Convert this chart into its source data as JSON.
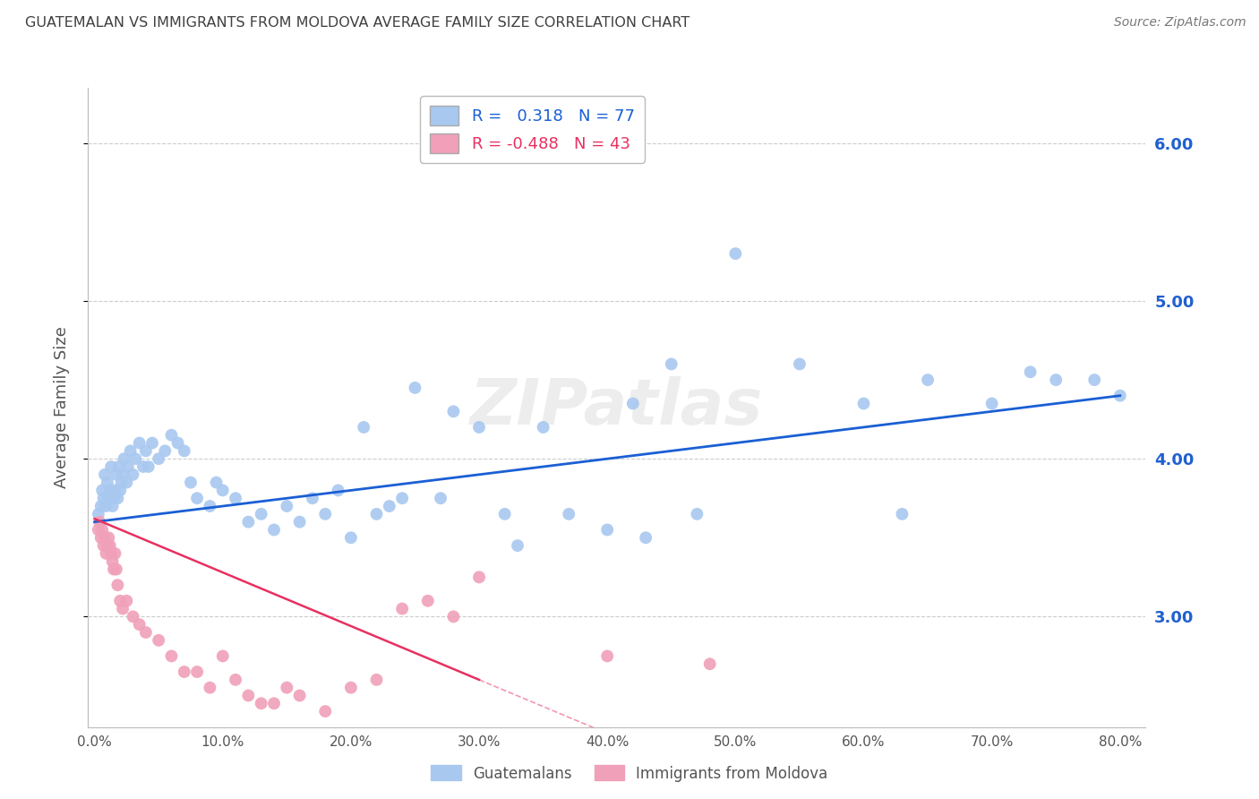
{
  "title": "GUATEMALAN VS IMMIGRANTS FROM MOLDOVA AVERAGE FAMILY SIZE CORRELATION CHART",
  "source": "Source: ZipAtlas.com",
  "ylabel": "Average Family Size",
  "xlabel_ticks": [
    "0.0%",
    "10.0%",
    "20.0%",
    "30.0%",
    "40.0%",
    "50.0%",
    "60.0%",
    "70.0%",
    "80.0%"
  ],
  "xlabel_vals": [
    0,
    10,
    20,
    30,
    40,
    50,
    60,
    70,
    80
  ],
  "yticks": [
    3.0,
    4.0,
    5.0,
    6.0
  ],
  "ylim": [
    2.3,
    6.35
  ],
  "xlim": [
    -0.5,
    82
  ],
  "blue_R": 0.318,
  "blue_N": 77,
  "pink_R": -0.488,
  "pink_N": 43,
  "blue_color": "#a8c8f0",
  "pink_color": "#f0a0b8",
  "blue_line_color": "#1a5fd4",
  "pink_line_color": "#e83060",
  "legend_blue_label": "Guatemalans",
  "legend_pink_label": "Immigrants from Moldova",
  "watermark": "ZIPatlas",
  "background_color": "#ffffff",
  "grid_color": "#cccccc",
  "title_color": "#404040",
  "axis_label_color": "#555555",
  "right_axis_color": "#2060d0",
  "blue_x": [
    0.3,
    0.5,
    0.6,
    0.7,
    0.8,
    0.9,
    1.0,
    1.1,
    1.2,
    1.3,
    1.4,
    1.5,
    1.6,
    1.7,
    1.8,
    1.9,
    2.0,
    2.1,
    2.2,
    2.3,
    2.5,
    2.6,
    2.8,
    3.0,
    3.2,
    3.5,
    3.8,
    4.0,
    4.2,
    4.5,
    5.0,
    5.5,
    6.0,
    6.5,
    7.0,
    7.5,
    8.0,
    9.0,
    9.5,
    10.0,
    11.0,
    12.0,
    13.0,
    14.0,
    15.0,
    16.0,
    17.0,
    18.0,
    19.0,
    20.0,
    21.0,
    22.0,
    23.0,
    24.0,
    25.0,
    27.0,
    28.0,
    30.0,
    32.0,
    33.0,
    35.0,
    37.0,
    40.0,
    42.0,
    43.0,
    45.0,
    47.0,
    50.0,
    55.0,
    60.0,
    63.0,
    65.0,
    70.0,
    73.0,
    75.0,
    78.0,
    80.0
  ],
  "blue_y": [
    3.65,
    3.7,
    3.8,
    3.75,
    3.9,
    3.7,
    3.85,
    3.75,
    3.8,
    3.95,
    3.7,
    3.75,
    3.8,
    3.9,
    3.75,
    3.95,
    3.8,
    3.85,
    3.9,
    4.0,
    3.85,
    3.95,
    4.05,
    3.9,
    4.0,
    4.1,
    3.95,
    4.05,
    3.95,
    4.1,
    4.0,
    4.05,
    4.15,
    4.1,
    4.05,
    3.85,
    3.75,
    3.7,
    3.85,
    3.8,
    3.75,
    3.6,
    3.65,
    3.55,
    3.7,
    3.6,
    3.75,
    3.65,
    3.8,
    3.5,
    4.2,
    3.65,
    3.7,
    3.75,
    4.45,
    3.75,
    4.3,
    4.2,
    3.65,
    3.45,
    4.2,
    3.65,
    3.55,
    4.35,
    3.5,
    4.6,
    3.65,
    5.3,
    4.6,
    4.35,
    3.65,
    4.5,
    4.35,
    4.55,
    4.5,
    4.5,
    4.4
  ],
  "pink_x": [
    0.3,
    0.4,
    0.5,
    0.6,
    0.7,
    0.8,
    0.9,
    1.0,
    1.1,
    1.2,
    1.3,
    1.4,
    1.5,
    1.6,
    1.7,
    1.8,
    2.0,
    2.2,
    2.5,
    3.0,
    3.5,
    4.0,
    5.0,
    6.0,
    7.0,
    8.0,
    9.0,
    10.0,
    11.0,
    12.0,
    13.0,
    14.0,
    15.0,
    16.0,
    18.0,
    20.0,
    22.0,
    24.0,
    26.0,
    28.0,
    30.0,
    40.0,
    48.0
  ],
  "pink_y": [
    3.55,
    3.6,
    3.5,
    3.55,
    3.45,
    3.5,
    3.4,
    3.45,
    3.5,
    3.45,
    3.4,
    3.35,
    3.3,
    3.4,
    3.3,
    3.2,
    3.1,
    3.05,
    3.1,
    3.0,
    2.95,
    2.9,
    2.85,
    2.75,
    2.65,
    2.65,
    2.55,
    2.75,
    2.6,
    2.5,
    2.45,
    2.45,
    2.55,
    2.5,
    2.4,
    2.55,
    2.6,
    3.05,
    3.1,
    3.0,
    3.25,
    2.75,
    2.7
  ],
  "blue_line_start_x": 0,
  "blue_line_start_y": 3.6,
  "blue_line_end_x": 80,
  "blue_line_end_y": 4.4,
  "pink_line_start_x": 0,
  "pink_line_start_y": 3.62,
  "pink_line_end_x": 30,
  "pink_line_end_y": 2.6,
  "pink_dashed_start_x": 30,
  "pink_dashed_start_y": 2.6,
  "pink_dashed_end_x": 80,
  "pink_dashed_end_y": 0.9
}
